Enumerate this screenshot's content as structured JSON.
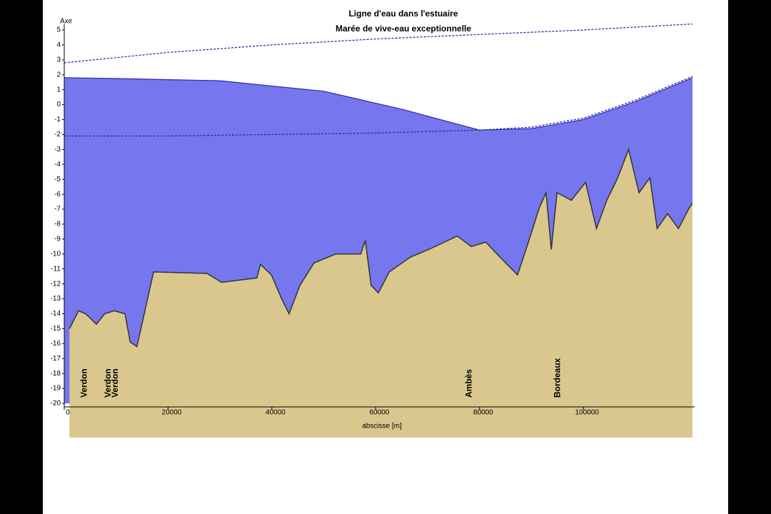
{
  "chart_data": {
    "type": "area-line",
    "title": "Ligne d'eau dans l'estuaire",
    "subtitle": "Marée de vive-eau exceptionnelle",
    "y_label": "Axe",
    "x_label": "abscisse [m]",
    "xlim": [
      0,
      121000
    ],
    "ylim": [
      -20,
      5
    ],
    "xticks": [
      0,
      20000,
      40000,
      60000,
      80000,
      100000
    ],
    "yticks": [
      5,
      4,
      3,
      2,
      1,
      0,
      -1,
      -2,
      -3,
      -4,
      -5,
      -6,
      -7,
      -8,
      -9,
      -10,
      -11,
      -12,
      -13,
      -14,
      -15,
      -16,
      -17,
      -18,
      -19,
      -20
    ],
    "series": [
      {
        "kind": "area",
        "color": "#7676ee",
        "x": [
          0,
          10000,
          30000,
          50000,
          65000,
          80000,
          90000,
          100000,
          110000,
          121000
        ],
        "values": [
          1.8,
          1.75,
          1.6,
          0.9,
          -0.3,
          -1.7,
          -1.6,
          -1,
          0.2,
          1.8
        ]
      },
      {
        "kind": "area",
        "color": "#d9c78d",
        "x": [
          1000,
          2750,
          4100,
          6200,
          7800,
          9600,
          11700,
          12700,
          14000,
          17200,
          27500,
          30300,
          37100,
          37800,
          39900,
          42000,
          43300,
          45400,
          48100,
          52300,
          57100,
          58000,
          59100,
          60500,
          62600,
          66700,
          70200,
          75700,
          78400,
          81200,
          83900,
          87300,
          89400,
          91500,
          92800,
          93800,
          94900,
          97700,
          100400,
          102500,
          104500,
          106600,
          108700,
          110700,
          112800,
          114200,
          116200,
          118300,
          120400,
          121000
        ],
        "values": [
          -15,
          -13.8,
          -14,
          -14.7,
          -14,
          -13.8,
          -14,
          -15.9,
          -16.2,
          -11.2,
          -11.3,
          -11.9,
          -11.6,
          -10.7,
          -11.4,
          -13.1,
          -14,
          -12.1,
          -10.6,
          -10,
          -10,
          -9.1,
          -12.1,
          -12.6,
          -11.2,
          -10.2,
          -9.7,
          -8.8,
          -9.5,
          -9.2,
          -10.2,
          -11.4,
          -9.2,
          -6.9,
          -5.9,
          -9.7,
          -5.9,
          -6.4,
          -5.2,
          -8.3,
          -6.4,
          -4.9,
          -3,
          -5.9,
          -4.9,
          -8.3,
          -7.3,
          -8.3,
          -6.9,
          -6.6
        ]
      },
      {
        "kind": "dashed",
        "color": "#2b2ba8",
        "x": [
          0,
          20000,
          40000,
          60000,
          80000,
          100000,
          121000
        ],
        "values": [
          2.8,
          3.5,
          4.0,
          4.4,
          4.7,
          5.0,
          5.4
        ]
      },
      {
        "kind": "dashed",
        "color": "#2b2ba8",
        "x": [
          0,
          20000,
          40000,
          60000,
          70000,
          80000,
          90000,
          100000,
          110000,
          121000
        ],
        "values": [
          -2.1,
          -2.1,
          -2.0,
          -1.9,
          -1.8,
          -1.7,
          -1.5,
          -0.9,
          0.3,
          1.9
        ]
      }
    ],
    "annotations": [
      {
        "text": "Verdon",
        "x": 3200
      },
      {
        "text": "Verdon",
        "x": 7800
      },
      {
        "text": "Verdon",
        "x": 9200
      },
      {
        "text": "Ambès",
        "x": 77300
      },
      {
        "text": "Bordeaux",
        "x": 94400
      }
    ]
  }
}
